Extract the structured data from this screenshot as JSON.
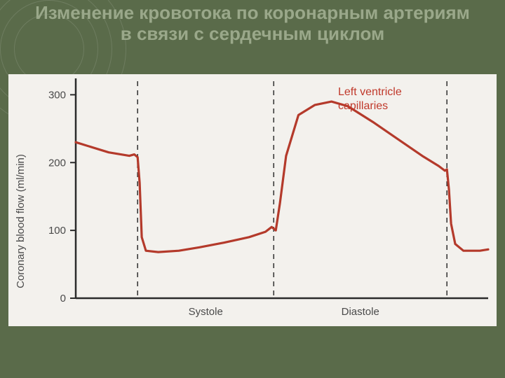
{
  "slide": {
    "title": "Изменение кровотока по коронарным артериям в связи с сердечным циклом",
    "background_color": "#5a6b4a",
    "title_color": "#9aa88a",
    "title_fontsize": 26
  },
  "chart": {
    "type": "line",
    "panel_background": "#f3f1ed",
    "ylabel": "Coronary blood flow (ml/min)",
    "label_fontsize": 15,
    "ylim": [
      0,
      320
    ],
    "yticks": [
      0,
      100,
      200,
      300
    ],
    "xlim": [
      0,
      100
    ],
    "axis_color": "#2b2b2b",
    "axis_width": 2.5,
    "phase_lines": {
      "positions": [
        15,
        48,
        90
      ],
      "color": "#3a3a3a",
      "dash": "7,6",
      "width": 1.6
    },
    "phase_labels": {
      "systole": "Systole",
      "diastole": "Diastole"
    },
    "series": {
      "name": "Left ventricle capillaries",
      "label_line1": "Left ventricle",
      "label_line2": "capillaries",
      "color": "#b43a2b",
      "width": 3.2,
      "points": [
        [
          0,
          230
        ],
        [
          8,
          215
        ],
        [
          13,
          210
        ],
        [
          14.2,
          212
        ],
        [
          15,
          208
        ],
        [
          15.5,
          170
        ],
        [
          16,
          90
        ],
        [
          17,
          70
        ],
        [
          20,
          68
        ],
        [
          25,
          70
        ],
        [
          30,
          75
        ],
        [
          36,
          82
        ],
        [
          42,
          90
        ],
        [
          46,
          98
        ],
        [
          47.5,
          105
        ],
        [
          48.5,
          100
        ],
        [
          49.5,
          140
        ],
        [
          51,
          210
        ],
        [
          54,
          270
        ],
        [
          58,
          285
        ],
        [
          62,
          290
        ],
        [
          66,
          283
        ],
        [
          72,
          260
        ],
        [
          78,
          235
        ],
        [
          84,
          210
        ],
        [
          88,
          195
        ],
        [
          89.5,
          188
        ],
        [
          90,
          190
        ],
        [
          90.5,
          160
        ],
        [
          91,
          110
        ],
        [
          92,
          80
        ],
        [
          94,
          70
        ],
        [
          98,
          70
        ],
        [
          100,
          72
        ]
      ]
    }
  }
}
